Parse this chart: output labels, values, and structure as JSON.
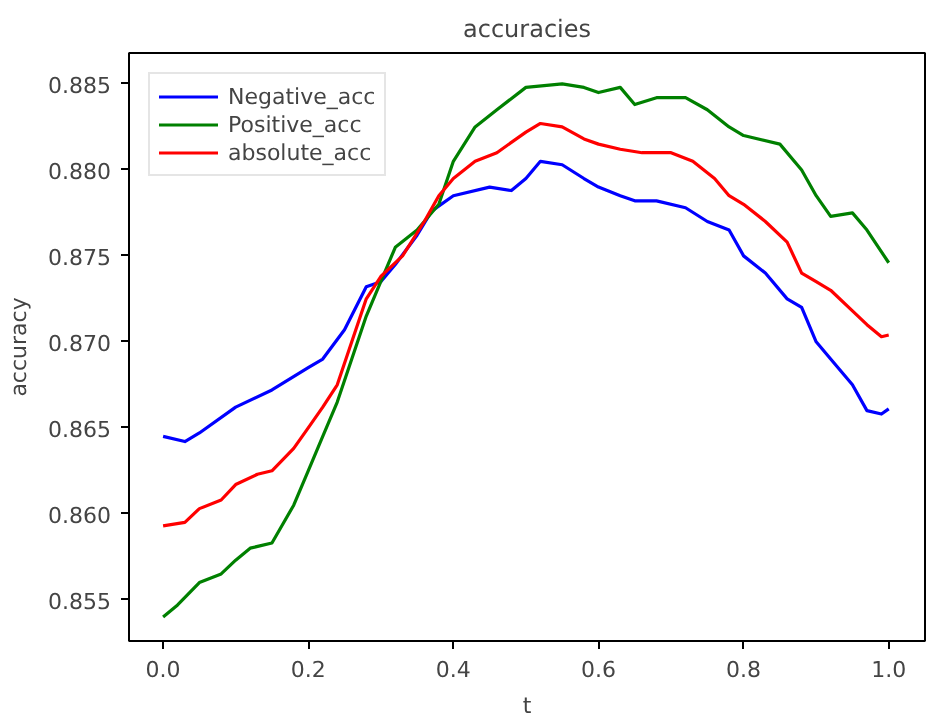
{
  "chart_data": {
    "type": "line",
    "title": "accuracies",
    "xlabel": "t",
    "ylabel": "accuracy",
    "legend": "top left",
    "grid": false,
    "line_style": "solid",
    "marker": "none",
    "xlim": [
      -0.047,
      1.05
    ],
    "ylim": [
      0.8526,
      0.8868
    ],
    "xticks": [
      {
        "value": 0.0,
        "label": "0.0"
      },
      0.2,
      0.4,
      0.6,
      0.8,
      {
        "value": 1.0,
        "label": "1.0"
      }
    ],
    "yticks": [
      0.855,
      {
        "value": 0.86,
        "label": "0.860"
      },
      0.865,
      {
        "value": 0.87,
        "label": "0.870"
      },
      0.875,
      {
        "value": 0.88,
        "label": "0.880"
      },
      0.885
    ],
    "series": [
      {
        "name": "Negative_acc",
        "color": "#0000ff",
        "x": [
          0.0,
          0.03,
          0.05,
          0.1,
          0.15,
          0.2,
          0.22,
          0.25,
          0.28,
          0.3,
          0.32,
          0.35,
          0.37,
          0.4,
          0.45,
          0.48,
          0.5,
          0.52,
          0.55,
          0.58,
          0.6,
          0.63,
          0.65,
          0.68,
          0.72,
          0.75,
          0.78,
          0.8,
          0.83,
          0.86,
          0.88,
          0.9,
          0.92,
          0.95,
          0.97,
          0.99,
          1.0
        ],
        "values": [
          0.8645,
          0.8642,
          0.8647,
          0.8662,
          0.8672,
          0.8685,
          0.869,
          0.8707,
          0.8732,
          0.8735,
          0.8745,
          0.8762,
          0.8776,
          0.8785,
          0.879,
          0.8788,
          0.8795,
          0.8805,
          0.8803,
          0.8795,
          0.879,
          0.8785,
          0.8782,
          0.8782,
          0.8778,
          0.877,
          0.8765,
          0.875,
          0.874,
          0.8725,
          0.872,
          0.87,
          0.869,
          0.8675,
          0.866,
          0.8658,
          0.8661
        ]
      },
      {
        "name": "Positive_acc",
        "color": "#008000",
        "x": [
          0.0,
          0.02,
          0.05,
          0.08,
          0.1,
          0.12,
          0.15,
          0.18,
          0.2,
          0.22,
          0.24,
          0.26,
          0.28,
          0.3,
          0.32,
          0.35,
          0.38,
          0.4,
          0.43,
          0.46,
          0.5,
          0.55,
          0.58,
          0.6,
          0.63,
          0.65,
          0.68,
          0.72,
          0.75,
          0.78,
          0.8,
          0.85,
          0.88,
          0.9,
          0.92,
          0.95,
          0.97,
          1.0
        ],
        "values": [
          0.854,
          0.8547,
          0.856,
          0.8565,
          0.8573,
          0.858,
          0.8583,
          0.8605,
          0.8625,
          0.8645,
          0.8665,
          0.869,
          0.8715,
          0.8735,
          0.8755,
          0.8765,
          0.878,
          0.8805,
          0.8825,
          0.8835,
          0.8848,
          0.885,
          0.8848,
          0.8845,
          0.8848,
          0.8838,
          0.8842,
          0.8842,
          0.8835,
          0.8825,
          0.882,
          0.8815,
          0.88,
          0.8785,
          0.8773,
          0.8775,
          0.8765,
          0.8746
        ]
      },
      {
        "name": "absolute_acc",
        "color": "#ff0000",
        "x": [
          0.0,
          0.03,
          0.05,
          0.08,
          0.1,
          0.13,
          0.15,
          0.18,
          0.2,
          0.22,
          0.24,
          0.26,
          0.28,
          0.3,
          0.33,
          0.36,
          0.38,
          0.4,
          0.43,
          0.46,
          0.5,
          0.52,
          0.55,
          0.58,
          0.6,
          0.63,
          0.66,
          0.7,
          0.73,
          0.76,
          0.78,
          0.8,
          0.83,
          0.86,
          0.88,
          0.9,
          0.92,
          0.95,
          0.97,
          0.99,
          1.0
        ],
        "values": [
          0.8593,
          0.8595,
          0.8603,
          0.8608,
          0.8617,
          0.8623,
          0.8625,
          0.8638,
          0.865,
          0.8662,
          0.8675,
          0.87,
          0.8725,
          0.8738,
          0.875,
          0.877,
          0.8785,
          0.8795,
          0.8805,
          0.881,
          0.8822,
          0.8827,
          0.8825,
          0.8818,
          0.8815,
          0.8812,
          0.881,
          0.881,
          0.8805,
          0.8795,
          0.8785,
          0.878,
          0.877,
          0.8758,
          0.874,
          0.8735,
          0.873,
          0.8718,
          0.871,
          0.8703,
          0.8704
        ]
      }
    ]
  }
}
